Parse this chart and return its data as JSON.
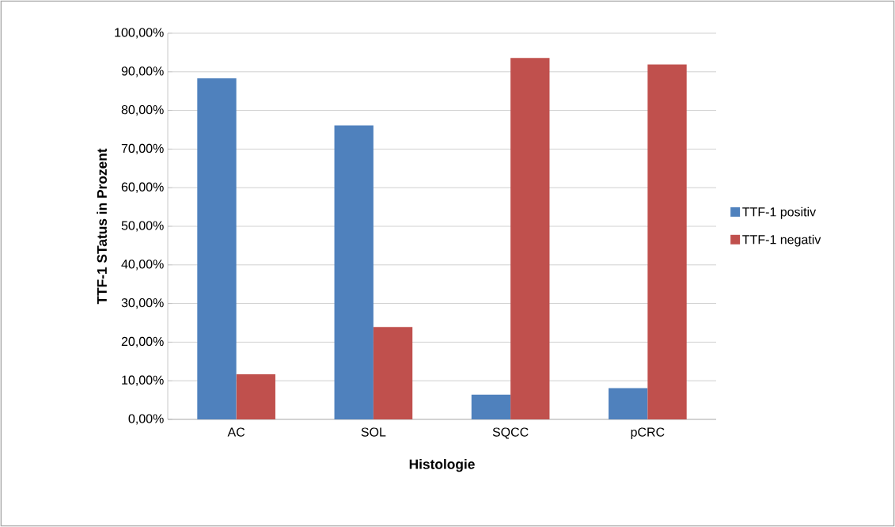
{
  "chart_data": {
    "type": "bar",
    "xlabel": "Histologie",
    "ylabel": "TTF-1 STatus in Prozent",
    "categories": [
      "AC",
      "SOL",
      "SQCC",
      "pCRC"
    ],
    "series": [
      {
        "name": "TTF-1 positiv",
        "color": "#4f81bd",
        "values": [
          88.3,
          76.1,
          6.4,
          8.1
        ]
      },
      {
        "name": "TTF-1 negativ",
        "color": "#c0504d",
        "values": [
          11.7,
          23.9,
          93.6,
          91.9
        ]
      }
    ],
    "ylim": [
      0,
      100
    ],
    "yticks": [
      {
        "value": 0,
        "label": "0,00%"
      },
      {
        "value": 10,
        "label": "10,00%"
      },
      {
        "value": 20,
        "label": "20,00%"
      },
      {
        "value": 30,
        "label": "30,00%"
      },
      {
        "value": 40,
        "label": "40,00%"
      },
      {
        "value": 50,
        "label": "50,00%"
      },
      {
        "value": 60,
        "label": "60,00%"
      },
      {
        "value": 70,
        "label": "70,00%"
      },
      {
        "value": 80,
        "label": "80,00%"
      },
      {
        "value": 90,
        "label": "90,00%"
      },
      {
        "value": 100,
        "label": "100,00%"
      }
    ],
    "grid": "y",
    "legend": "right"
  }
}
